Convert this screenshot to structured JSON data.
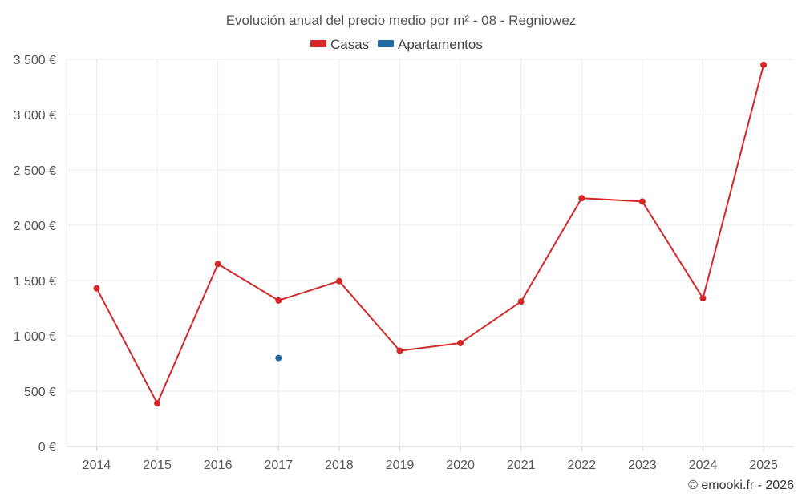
{
  "chart_data": {
    "type": "line",
    "title": "Evolución anual del precio medio por m² - 08 - Regniowez",
    "categories": [
      "2014",
      "2015",
      "2016",
      "2017",
      "2018",
      "2019",
      "2020",
      "2021",
      "2022",
      "2023",
      "2024",
      "2025"
    ],
    "series": [
      {
        "name": "Casas",
        "color": "#d62728",
        "values": [
          1430,
          390,
          1650,
          1320,
          1495,
          865,
          935,
          1310,
          2245,
          2215,
          1340,
          3450
        ]
      },
      {
        "name": "Apartamentos",
        "color": "#1f6aa5",
        "values": [
          null,
          null,
          null,
          800,
          null,
          null,
          null,
          null,
          null,
          null,
          null,
          null
        ]
      }
    ],
    "ylim": [
      0,
      3500
    ],
    "yticks": [
      0,
      500,
      1000,
      1500,
      2000,
      2500,
      3000,
      3500
    ],
    "ytick_labels": [
      "0 €",
      "500 €",
      "1 000 €",
      "1 500 €",
      "2 000 €",
      "2 500 €",
      "3 000 €",
      "3 500 €"
    ],
    "xlabel": "",
    "ylabel": "",
    "grid": true,
    "legend_position": "top-center"
  },
  "credit": "© emooki.fr - 2026"
}
